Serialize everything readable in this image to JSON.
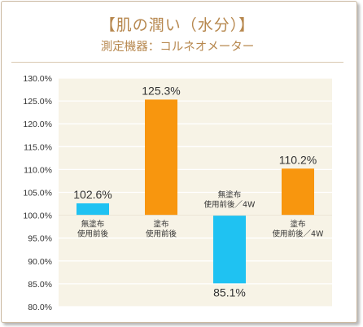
{
  "title": "【肌の潤い（水分）】",
  "subtitle": "測定機器：コルネオメーター",
  "colors": {
    "title": "#b7884f",
    "plot_bg": "#f7f3e6",
    "grid": "#ffffff",
    "bar_blue": "#1fc2f2",
    "bar_orange": "#f8960e"
  },
  "chart_data": {
    "type": "bar",
    "baseline": 100,
    "ylim": [
      80,
      130
    ],
    "yticks": [
      80,
      85,
      90,
      95,
      100,
      105,
      110,
      115,
      120,
      125,
      130
    ],
    "ytick_labels": [
      "80.0%",
      "85.0%",
      "90.0%",
      "95.0%",
      "100.0%",
      "105.0%",
      "110.0%",
      "115.0%",
      "120.0%",
      "125.0%",
      "130.0%"
    ],
    "grid": true,
    "categories": [
      [
        "無塗布",
        "使用前後"
      ],
      [
        "塗布",
        "使用前後"
      ],
      [
        "無塗布",
        "使用前後／4W"
      ],
      [
        "塗布",
        "使用前後／4W"
      ]
    ],
    "values": [
      102.6,
      125.3,
      85.1,
      110.2
    ],
    "data_labels": [
      "102.6%",
      "125.3%",
      "85.1%",
      "110.2%"
    ],
    "bar_colors": [
      "#1fc2f2",
      "#f8960e",
      "#1fc2f2",
      "#f8960e"
    ]
  }
}
